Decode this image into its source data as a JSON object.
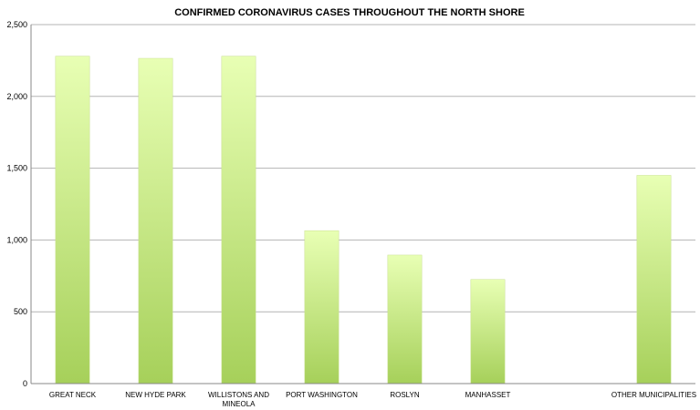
{
  "chart_data": {
    "type": "bar",
    "title": "CONFIRMED CORONAVIRUS CASES THROUGHOUT THE NORTH SHORE",
    "xlabel": "",
    "ylabel": "",
    "ylim": [
      0,
      2500
    ],
    "yticks": [
      "0",
      "500",
      "1,000",
      "1,500",
      "2,000",
      "2,500"
    ],
    "categories": [
      [
        "GREAT NECK"
      ],
      [
        "NEW HYDE PARK"
      ],
      [
        "WILLISTONS AND",
        "MINEOLA"
      ],
      [
        "PORT WASHINGTON"
      ],
      [
        "ROSLYN"
      ],
      [
        "MANHASSET"
      ],
      [
        ""
      ],
      [
        "OTHER MUNICIPALITIES"
      ]
    ],
    "values": [
      2280,
      2265,
      2280,
      1065,
      895,
      725,
      null,
      1450
    ],
    "grid": true,
    "legend": "none",
    "colors": {
      "bar_top": "#e8ffb4",
      "bar_bottom": "#a6d05a",
      "grid": "#b4b4b4",
      "axis": "#888888"
    }
  }
}
